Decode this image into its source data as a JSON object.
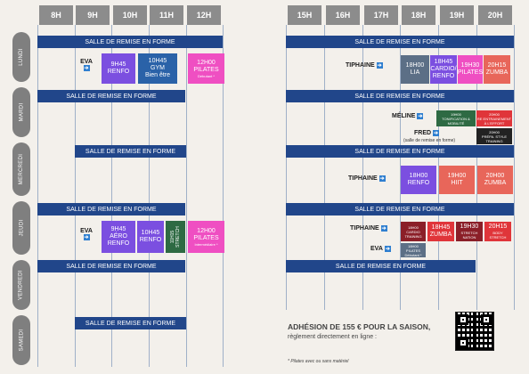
{
  "hours_left": [
    "8H",
    "9H",
    "10H",
    "11H",
    "12H"
  ],
  "hours_right": [
    "15H",
    "16H",
    "17H",
    "18H",
    "19H",
    "20H"
  ],
  "days": [
    "LUNDI",
    "MARDI",
    "MERCREDI",
    "JEUDI",
    "VENDREDI",
    "SAMEDI"
  ],
  "room": "SALLE DE REMISE EN FORME",
  "labels": {
    "eva": "EVA",
    "tiphaine": "TIPHAINE",
    "meline": "MÉLINE",
    "fred": "FRED",
    "room_note": "(salle de remise en forme)",
    "arrow": "➔"
  },
  "classes": {
    "mon_renfo": {
      "time": "9H45",
      "name": "RENFO"
    },
    "mon_gym": {
      "time": "10H45",
      "name": "GYM",
      "extra": "Bien être"
    },
    "mon_pilates": {
      "time": "12H00",
      "name": "PILATES",
      "sub": "Débutant *"
    },
    "mon_lia": {
      "time": "18H00",
      "name": "LIA"
    },
    "mon_cardio": {
      "time": "18H45",
      "name": "CARDIO/",
      "extra": "RENFO"
    },
    "mon_pilates2": {
      "time": "19H30",
      "name": "PILATES"
    },
    "mon_zumba": {
      "time": "20H15",
      "name": "ZUMBA"
    },
    "tue_tonif": {
      "time": "19H00",
      "name": "TONIFICATION &",
      "sub": "MOBILITÉ"
    },
    "tue_entrain": {
      "time": "20H00",
      "name": "RE ENTRAINEMENT",
      "sub": "À L'EFFORT"
    },
    "tue_prepa": {
      "time": "20H00",
      "name": "PRÉPA. STYLE",
      "sub": "TRAINING"
    },
    "wed_renfo": {
      "time": "18H00",
      "name": "RENFO"
    },
    "wed_hiit": {
      "time": "19H00",
      "name": "HIIT"
    },
    "wed_zumba": {
      "time": "20H00",
      "name": "ZUMBA"
    },
    "thu_aero": {
      "time": "9H45",
      "name": "AÉRO",
      "extra": "RENFO"
    },
    "thu_renfo": {
      "time": "10H45",
      "name": "RENFO"
    },
    "thu_stretch": {
      "time": "11H15",
      "name": "STRETCH"
    },
    "thu_pilates": {
      "time": "12H00",
      "name": "PILATES",
      "sub": "Intermédiaire *"
    },
    "thu_cardio": {
      "time": "18H00",
      "name": "CARDIO",
      "sub": "TRAINING"
    },
    "thu_zumba": {
      "time": "18H45",
      "name": "ZUMBA"
    },
    "thu_stretch2": {
      "time": "19H30",
      "name": "STRETCH",
      "sub": "NATION"
    },
    "thu_body": {
      "time": "20H15",
      "name": "BODY",
      "sub": "STRETCH"
    },
    "thu_pilates2": {
      "time": "18H00",
      "name": "PILATES",
      "sub": "Débutant *"
    }
  },
  "footer": {
    "title": "ADHÉSION DE 155 € POUR LA SAISON,",
    "subtitle": "règlement directement en ligne :",
    "note": "* Pilates avec ou sans matériel"
  },
  "colors": {
    "header": "#8c8c8c",
    "bar": "#21468a",
    "purple": "#7b4fe0",
    "blue": "#2a62a8",
    "pink": "#ef4fc2",
    "slate": "#5c6f86",
    "salmon": "#e8665a",
    "red": "#e0353a",
    "green": "#2e6a43",
    "darkred": "#8b1f28"
  }
}
